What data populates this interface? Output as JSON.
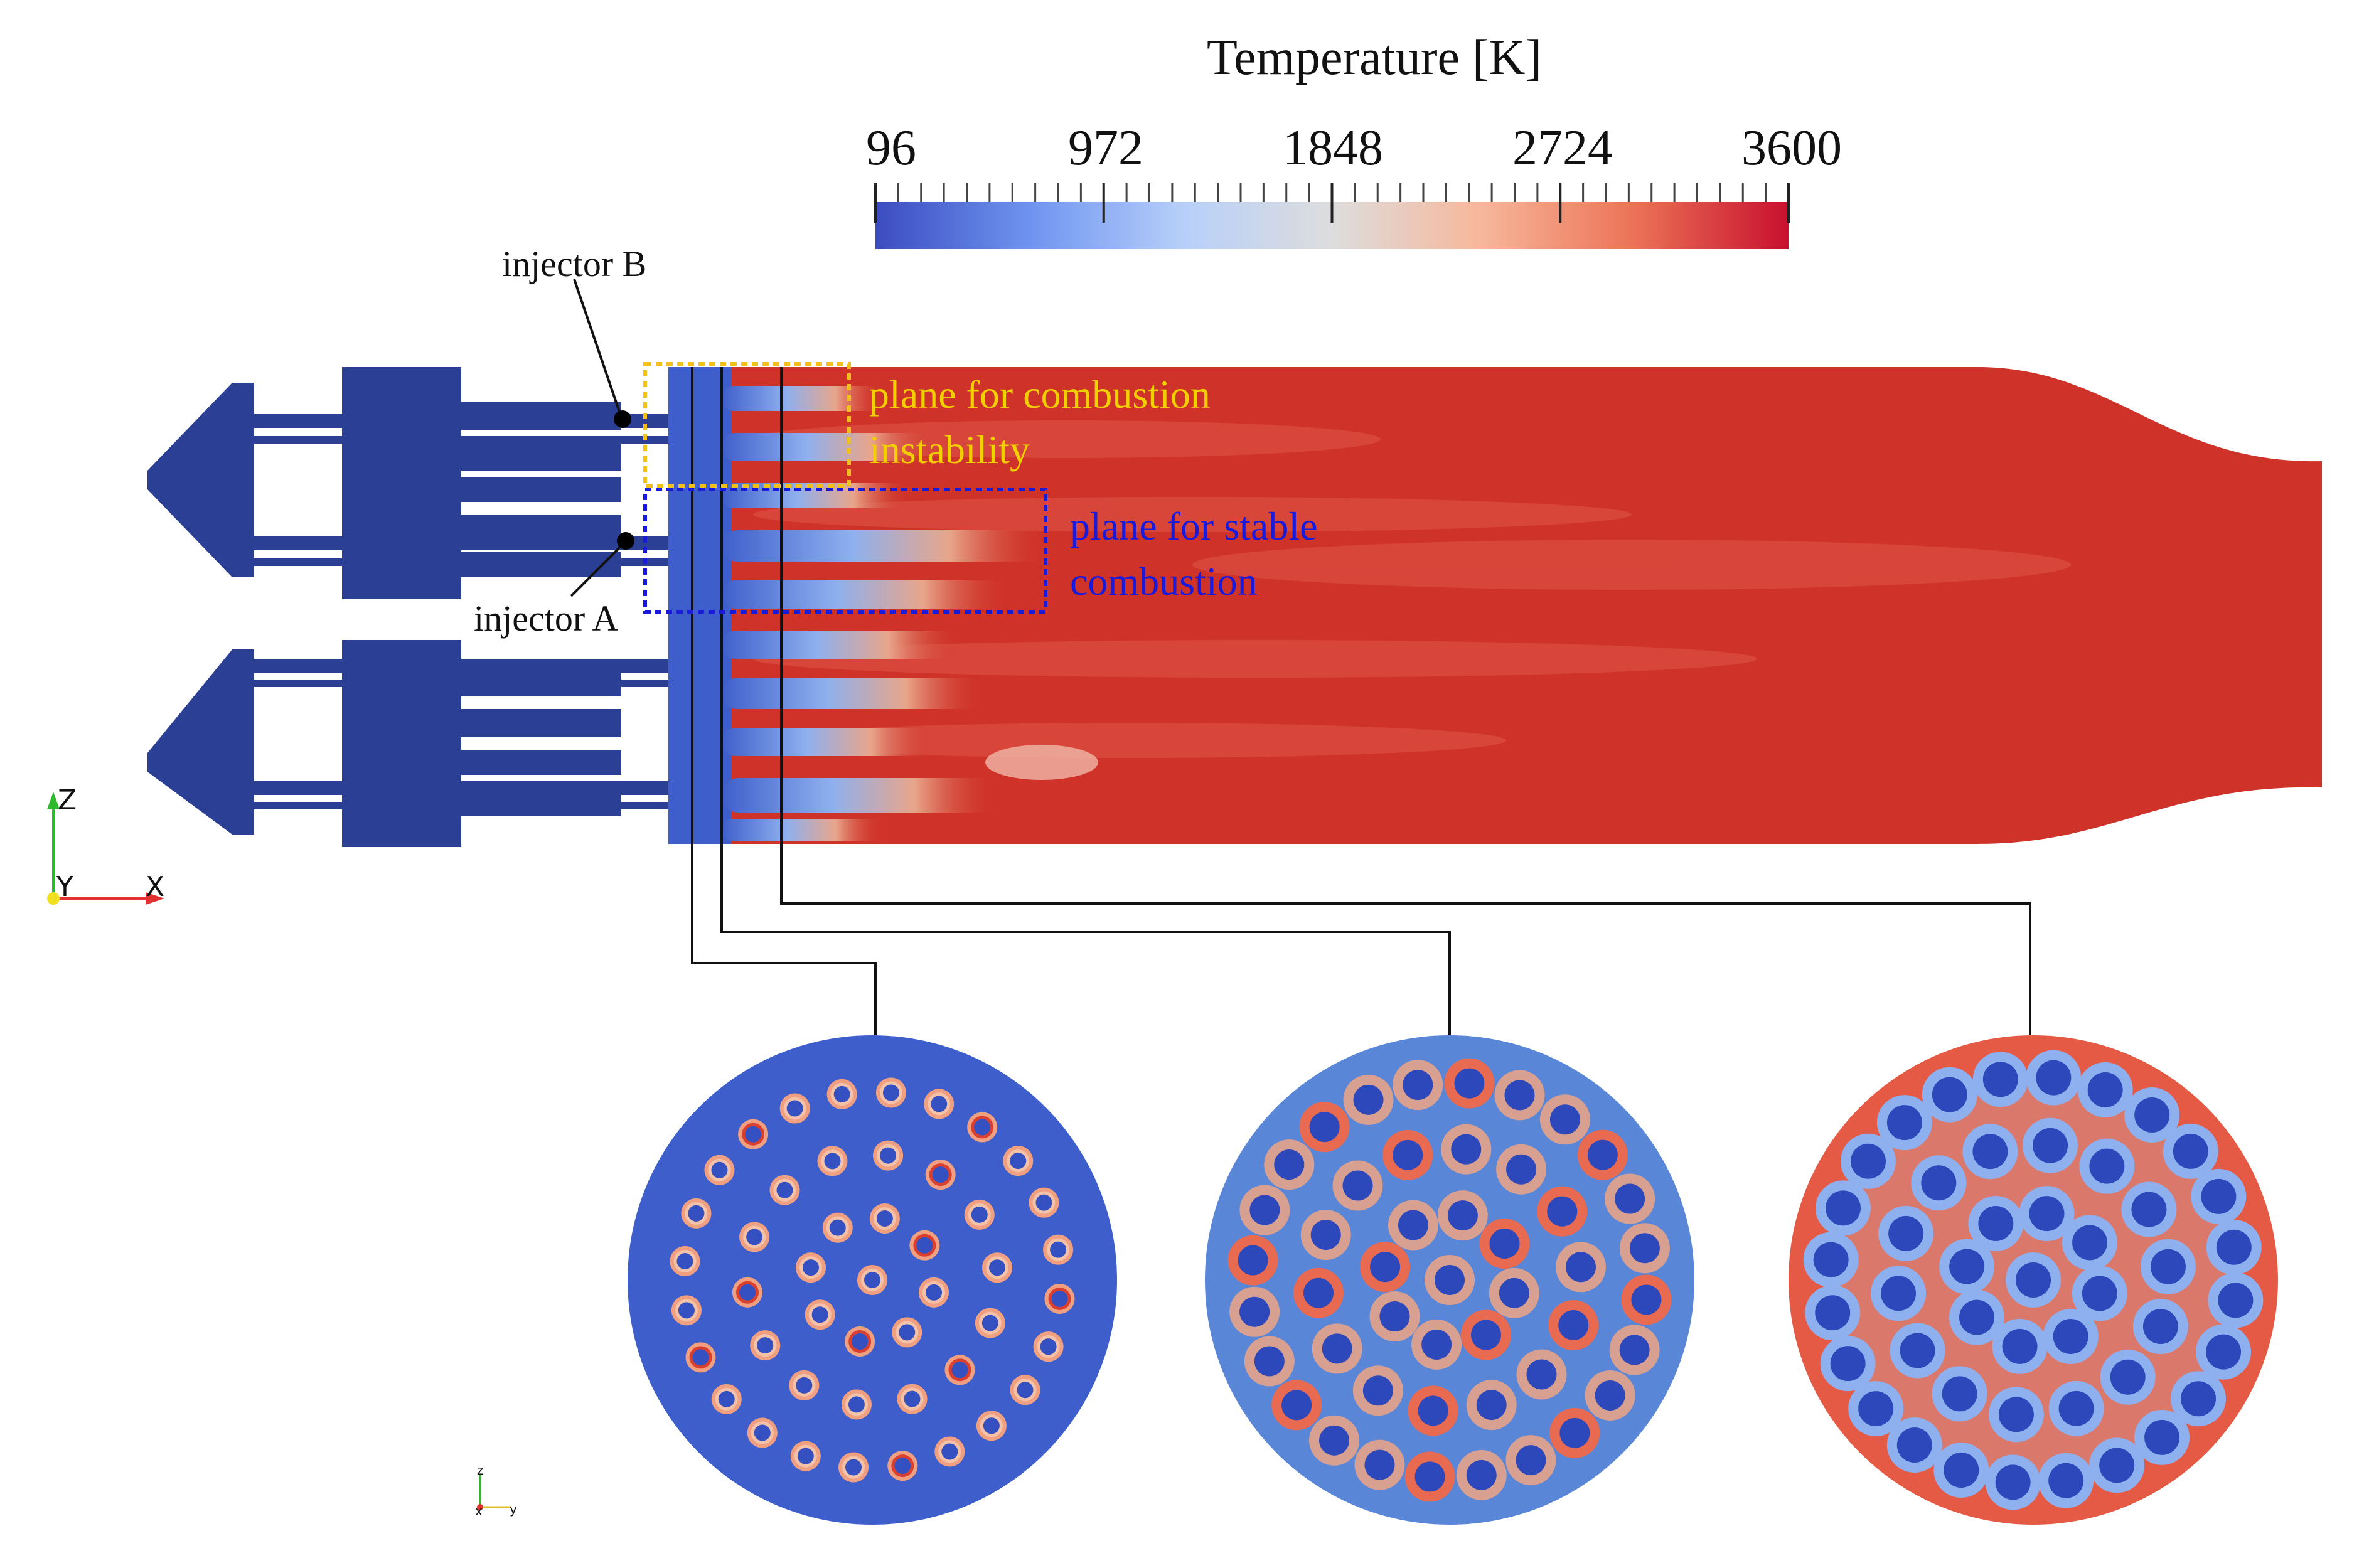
{
  "colorbar": {
    "title": "Temperature [K]",
    "ticks": [
      "96",
      "972",
      "1848",
      "2724",
      "3600"
    ],
    "colors": [
      "#3b4cc0",
      "#6f94f0",
      "#b8d0f9",
      "#dddddd",
      "#f7b89c",
      "#ec7357",
      "#c8102e"
    ]
  },
  "labels": {
    "injector_b": "injector  B",
    "injector_a": "injector  A",
    "instability_line1": "plane for combustion",
    "instability_line2": "instability",
    "stable_line1": "plane for stable",
    "stable_line2": "combustion"
  },
  "axes_large": {
    "z": "Z",
    "y": "Y",
    "x": "X"
  },
  "axes_small": {
    "z": "z",
    "x": "x",
    "y": "y"
  },
  "colors": {
    "injector_solid": "#2b3f95",
    "hot": "#cf3228",
    "cold": "#3e5fcb",
    "instability_box": "#f2c01a",
    "instability_text": "#f2d000",
    "stable_box": "#1a1adb",
    "stable_text": "#1a1adb"
  }
}
